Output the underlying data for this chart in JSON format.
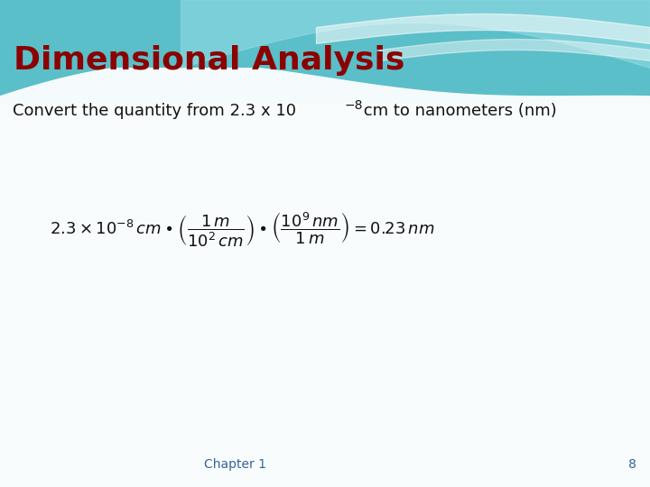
{
  "title": "Dimensional Analysis",
  "title_color": "#8B0000",
  "title_fontsize": 26,
  "subtitle_fontsize": 13,
  "subtitle_color": "#111111",
  "bg_color": "#f0f8fa",
  "header_teal": "#5BBFCC",
  "header_light": "#A8DDE6",
  "header_white": "#D8F0F5",
  "footer_text": "Chapter 1",
  "footer_page": "8",
  "footer_color": "#336699",
  "footer_fontsize": 10,
  "equation_color": "#111111",
  "equation_fontsize": 13
}
